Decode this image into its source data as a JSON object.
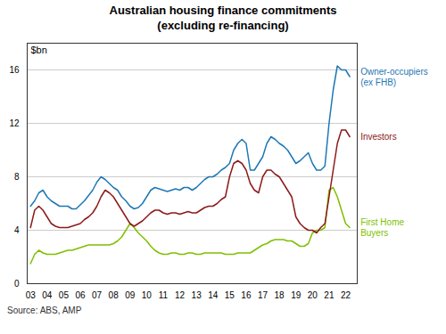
{
  "chart_data": {
    "type": "line",
    "title": "Australian housing finance commitments\n(excluding re-financing)",
    "y_label": "$bn",
    "annotations": [
      "Source: ABS, AMP"
    ],
    "x": [
      2003.0,
      2003.25,
      2003.5,
      2003.75,
      2004.0,
      2004.25,
      2004.5,
      2004.75,
      2005.0,
      2005.25,
      2005.5,
      2005.75,
      2006.0,
      2006.25,
      2006.5,
      2006.75,
      2007.0,
      2007.25,
      2007.5,
      2007.75,
      2008.0,
      2008.25,
      2008.5,
      2008.75,
      2009.0,
      2009.25,
      2009.5,
      2009.75,
      2010.0,
      2010.25,
      2010.5,
      2010.75,
      2011.0,
      2011.25,
      2011.5,
      2011.75,
      2012.0,
      2012.25,
      2012.5,
      2012.75,
      2013.0,
      2013.25,
      2013.5,
      2013.75,
      2014.0,
      2014.25,
      2014.5,
      2014.75,
      2015.0,
      2015.25,
      2015.5,
      2015.75,
      2016.0,
      2016.25,
      2016.5,
      2016.75,
      2017.0,
      2017.25,
      2017.5,
      2017.75,
      2018.0,
      2018.25,
      2018.5,
      2018.75,
      2019.0,
      2019.25,
      2019.5,
      2019.75,
      2020.0,
      2020.25,
      2020.5,
      2020.75,
      2021.0,
      2021.25,
      2021.5,
      2021.75,
      2022.0,
      2022.25
    ],
    "series": [
      {
        "name": "Owner-occupiers\n(ex FHB)",
        "color": "#1f77b4",
        "values": [
          5.8,
          6.2,
          6.8,
          7.0,
          6.5,
          6.2,
          6.0,
          5.8,
          5.8,
          5.8,
          5.6,
          5.6,
          5.9,
          6.2,
          6.6,
          7.0,
          7.6,
          8.0,
          7.8,
          7.5,
          7.2,
          7.0,
          6.5,
          6.2,
          5.8,
          5.6,
          5.7,
          6.0,
          6.5,
          7.0,
          7.2,
          7.1,
          7.0,
          6.9,
          7.0,
          7.1,
          7.0,
          7.2,
          7.2,
          7.0,
          7.2,
          7.5,
          7.8,
          8.0,
          8.0,
          8.2,
          8.5,
          8.7,
          9.0,
          10.0,
          10.5,
          10.8,
          10.5,
          8.5,
          8.5,
          9.0,
          9.5,
          10.5,
          11.0,
          10.8,
          10.5,
          10.3,
          10.0,
          9.5,
          9.0,
          9.2,
          9.5,
          9.8,
          9.0,
          8.5,
          8.5,
          8.8,
          12.0,
          14.5,
          16.3,
          16.0,
          16.0,
          15.5
        ]
      },
      {
        "name": "Investors",
        "color": "#8b1a1a",
        "values": [
          4.2,
          5.5,
          5.8,
          5.5,
          5.0,
          4.5,
          4.3,
          4.2,
          4.2,
          4.2,
          4.3,
          4.4,
          4.5,
          4.8,
          5.0,
          5.3,
          5.8,
          6.5,
          7.0,
          6.8,
          6.5,
          6.0,
          5.5,
          5.0,
          4.5,
          4.3,
          4.5,
          4.7,
          5.0,
          5.3,
          5.5,
          5.5,
          5.3,
          5.2,
          5.3,
          5.3,
          5.2,
          5.3,
          5.4,
          5.3,
          5.3,
          5.5,
          5.7,
          5.8,
          5.8,
          6.0,
          6.3,
          6.5,
          8.0,
          9.0,
          9.2,
          9.0,
          8.5,
          7.5,
          7.0,
          6.8,
          8.0,
          8.5,
          8.5,
          8.2,
          8.0,
          7.5,
          7.0,
          6.5,
          5.0,
          4.5,
          4.2,
          4.0,
          4.0,
          3.8,
          4.2,
          4.5,
          6.5,
          8.5,
          10.5,
          11.5,
          11.5,
          11.0
        ]
      },
      {
        "name": "First Home\nBuyers",
        "color": "#7fbf00",
        "values": [
          1.5,
          2.2,
          2.5,
          2.3,
          2.2,
          2.2,
          2.2,
          2.3,
          2.4,
          2.5,
          2.5,
          2.6,
          2.7,
          2.8,
          2.9,
          2.9,
          2.9,
          2.9,
          2.9,
          2.9,
          3.0,
          3.2,
          3.5,
          4.0,
          4.5,
          4.2,
          3.8,
          3.5,
          3.2,
          2.8,
          2.5,
          2.3,
          2.2,
          2.2,
          2.3,
          2.3,
          2.2,
          2.2,
          2.3,
          2.3,
          2.2,
          2.2,
          2.3,
          2.3,
          2.3,
          2.3,
          2.3,
          2.2,
          2.2,
          2.2,
          2.3,
          2.3,
          2.3,
          2.3,
          2.5,
          2.7,
          2.9,
          3.0,
          3.2,
          3.3,
          3.3,
          3.3,
          3.2,
          3.2,
          3.0,
          2.8,
          2.8,
          3.0,
          3.8,
          4.0,
          4.0,
          4.2,
          7.0,
          7.2,
          6.5,
          5.5,
          4.5,
          4.2
        ]
      }
    ],
    "xlim": [
      2002.8,
      2022.7
    ],
    "xticks": [
      {
        "value": 2003,
        "label": "03"
      },
      {
        "value": 2004,
        "label": "04"
      },
      {
        "value": 2005,
        "label": "05"
      },
      {
        "value": 2006,
        "label": "06"
      },
      {
        "value": 2007,
        "label": "07"
      },
      {
        "value": 2008,
        "label": "08"
      },
      {
        "value": 2009,
        "label": "09"
      },
      {
        "value": 2010,
        "label": "10"
      },
      {
        "value": 2011,
        "label": "11"
      },
      {
        "value": 2012,
        "label": "12"
      },
      {
        "value": 2013,
        "label": "13"
      },
      {
        "value": 2014,
        "label": "14"
      },
      {
        "value": 2015,
        "label": "15"
      },
      {
        "value": 2016,
        "label": "16"
      },
      {
        "value": 2017,
        "label": "17"
      },
      {
        "value": 2018,
        "label": "18"
      },
      {
        "value": 2019,
        "label": "19"
      },
      {
        "value": 2020,
        "label": "20"
      },
      {
        "value": 2021,
        "label": "21"
      },
      {
        "value": 2022,
        "label": "22"
      }
    ],
    "ylim": [
      0,
      18
    ],
    "yticks": [
      0,
      4,
      8,
      12,
      16
    ],
    "grid": true
  }
}
